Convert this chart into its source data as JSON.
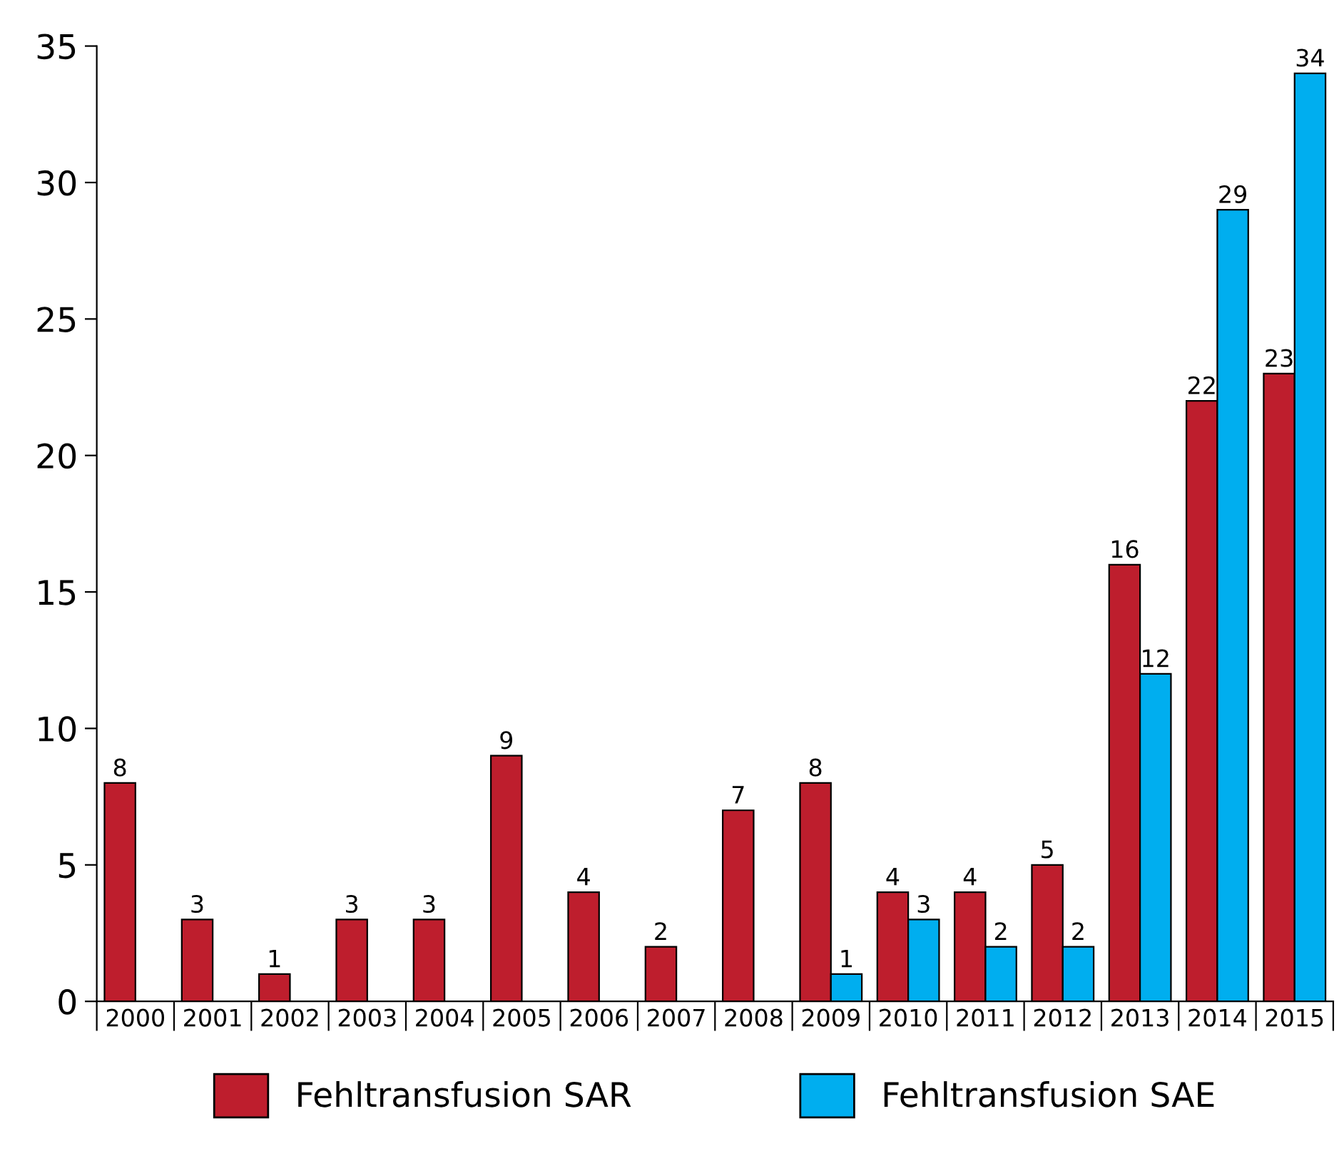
{
  "chart_data": {
    "type": "bar",
    "categories": [
      "2000",
      "2001",
      "2002",
      "2003",
      "2004",
      "2005",
      "2006",
      "2007",
      "2008",
      "2009",
      "2010",
      "2011",
      "2012",
      "2013",
      "2014",
      "2015"
    ],
    "series": [
      {
        "name": "Fehltransfusion SAR",
        "color": "#be1e2d",
        "values": [
          8,
          3,
          1,
          3,
          3,
          9,
          4,
          2,
          7,
          8,
          4,
          4,
          5,
          16,
          22,
          23
        ]
      },
      {
        "name": "Fehltransfusion SAE",
        "color": "#00aeef",
        "values": [
          null,
          null,
          null,
          null,
          null,
          null,
          null,
          null,
          null,
          1,
          3,
          2,
          2,
          12,
          29,
          34
        ]
      }
    ],
    "ylim": [
      0,
      35
    ],
    "yticks": [
      0,
      5,
      10,
      15,
      20,
      25,
      30,
      35
    ],
    "grid": false,
    "legend": "bottom",
    "data_labels": true
  }
}
